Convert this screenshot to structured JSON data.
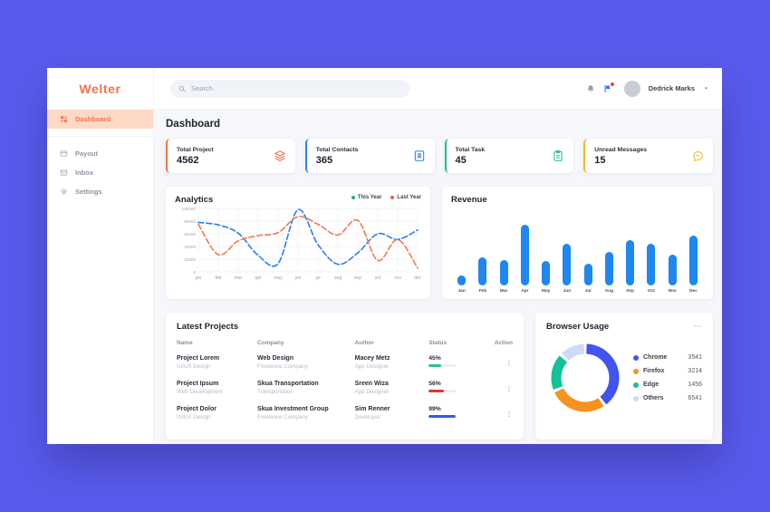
{
  "app": {
    "brand": "Welter"
  },
  "sidebar": {
    "items": [
      {
        "label": "Dashboard",
        "icon": "grid-icon",
        "active": true
      },
      {
        "label": "Payout",
        "icon": "wallet-icon",
        "active": false
      },
      {
        "label": "Inbox",
        "icon": "inbox-icon",
        "active": false
      },
      {
        "label": "Settings",
        "icon": "gear-icon",
        "active": false
      }
    ]
  },
  "topbar": {
    "search_placeholder": "Search",
    "search_icon": "search-icon",
    "icons": [
      {
        "name": "bell-icon",
        "badge": false
      },
      {
        "name": "flag-chart-icon",
        "badge": true,
        "badge_color": "#ef4444"
      }
    ],
    "user": {
      "name": "Dedrick Marks",
      "caret_icon": "caret-down-icon"
    }
  },
  "page": {
    "title": "Dashboard"
  },
  "stats": [
    {
      "label": "Total Project",
      "value": "4562",
      "icon": "layers-icon",
      "color": "#f4724a"
    },
    {
      "label": "Total Contacts",
      "value": "365",
      "icon": "contacts-icon",
      "color": "#2f80ed"
    },
    {
      "label": "Total Task",
      "value": "45",
      "icon": "clipboard-icon",
      "color": "#1fc48b"
    },
    {
      "label": "Unread Messages",
      "value": "15",
      "icon": "chat-icon",
      "color": "#f0b927"
    }
  ],
  "chart_data": [
    {
      "type": "line",
      "title": "Analytics",
      "categories": [
        "jan",
        "feb",
        "mar",
        "apr",
        "may",
        "jun",
        "jul",
        "aug",
        "sep",
        "oct",
        "nov",
        "dec"
      ],
      "yticks": [
        0,
        20000,
        40000,
        60000,
        80000,
        100000
      ],
      "ylim": [
        0,
        100000
      ],
      "xlabel": "",
      "ylabel": "",
      "grid": true,
      "line_style": "dashed",
      "legend_position": "top-right",
      "series": [
        {
          "name": "This Year",
          "line_color": "#2b7cf3",
          "marker_color": "#2aa78c",
          "values": [
            78000,
            74000,
            61000,
            26000,
            13000,
            98000,
            43000,
            12000,
            30000,
            60000,
            51000,
            66000
          ]
        },
        {
          "name": "Last Year",
          "line_color": "#f4794e",
          "marker_color": "#ef6046",
          "values": [
            75000,
            27000,
            49000,
            57000,
            62000,
            87000,
            75000,
            58000,
            81000,
            18000,
            51000,
            6000
          ]
        }
      ]
    },
    {
      "type": "bar",
      "title": "Revenue",
      "categories": [
        "Jan",
        "Feb",
        "Mar",
        "Apr",
        "May",
        "Jun",
        "Jul",
        "Aug",
        "Sep",
        "Oct",
        "Nov",
        "Dec"
      ],
      "values": [
        15,
        42,
        38,
        90,
        36,
        62,
        32,
        50,
        67,
        62,
        46,
        74
      ],
      "ylim": [
        0,
        100
      ],
      "bar_color": "#1e87f0",
      "xlabel": "",
      "ylabel": "",
      "grid": false
    },
    {
      "type": "donut",
      "title": "Browser Usage",
      "menu_icon": "ellipsis-icon",
      "legend_position": "right",
      "items": [
        {
          "label": "Chrome",
          "value": "3541",
          "color": "#4154ef",
          "percent": 40
        },
        {
          "label": "Firefox",
          "value": "3214",
          "color": "#f6921e",
          "percent": 28.5
        },
        {
          "label": "Edge",
          "value": "1456",
          "color": "#13c296",
          "percent": 18.5
        },
        {
          "label": "Others",
          "value": "6541",
          "color": "#cdd9f6",
          "percent": 13
        }
      ]
    }
  ],
  "projects": {
    "title": "Latest Projects",
    "columns": [
      "Name",
      "Company",
      "Author",
      "Status",
      "Action"
    ],
    "action_icon": "kebab-icon",
    "rows": [
      {
        "name": "Project Lorem",
        "name_sub": "UI/UX Design",
        "company": "Web Design",
        "company_sub": "Freelance Company",
        "author": "Macey Metz",
        "author_sub": "App Designer",
        "status": "45%",
        "progress": 45,
        "progress_color": "#2bc194"
      },
      {
        "name": "Project Ipsum",
        "name_sub": "Web Development",
        "company": "Skua Transportation",
        "company_sub": "Transportation",
        "author": "Sreen Wiza",
        "author_sub": "App Designer",
        "status": "56%",
        "progress": 56,
        "progress_color": "#e23434"
      },
      {
        "name": "Project Dolor",
        "name_sub": "UI/UX Design",
        "company": "Skua Investment Group",
        "company_sub": "Freelance Company",
        "author": "Sim Renner",
        "author_sub": "Developer",
        "status": "99%",
        "progress": 99,
        "progress_color": "#2b5cf0"
      }
    ]
  }
}
